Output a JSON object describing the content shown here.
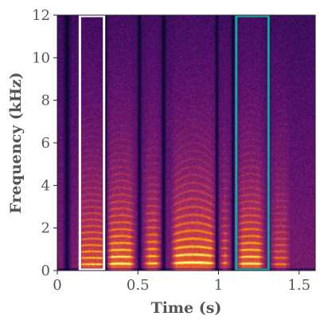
{
  "chart_data": {
    "type": "heatmap",
    "title": "",
    "xlabel": "Time (s)",
    "ylabel": "Frequency (kHz)",
    "xlim": [
      0,
      1.6
    ],
    "ylim": [
      0,
      12
    ],
    "x_ticks": [
      {
        "value": 0,
        "label": "0"
      },
      {
        "value": 0.5,
        "label": "0.5"
      },
      {
        "value": 1,
        "label": "1"
      },
      {
        "value": 1.5,
        "label": "1.5"
      }
    ],
    "y_ticks": [
      {
        "value": 0,
        "label": "0"
      },
      {
        "value": 2,
        "label": "2"
      },
      {
        "value": 4,
        "label": "4"
      },
      {
        "value": 6,
        "label": "6"
      },
      {
        "value": 8,
        "label": "8"
      },
      {
        "value": 10,
        "label": "10"
      },
      {
        "value": 12,
        "label": "12"
      }
    ],
    "colormap": "inferno",
    "grid": false,
    "highlight_boxes": [
      {
        "x_start": 0.14,
        "x_end": 0.29,
        "y_start": 0,
        "y_end": 12,
        "color": "#ffffff"
      },
      {
        "x_start": 1.11,
        "x_end": 1.31,
        "y_start": 0,
        "y_end": 12,
        "color": "#1aa39c"
      }
    ],
    "voiced_segments": [
      {
        "start": 0.14,
        "end": 0.29,
        "f0_khz": 0.24,
        "strength": 0.8
      },
      {
        "start": 0.32,
        "end": 0.47,
        "f0_khz": 0.26,
        "strength": 1.0
      },
      {
        "start": 0.55,
        "end": 0.63,
        "f0_khz": 0.27,
        "strength": 0.85
      },
      {
        "start": 0.72,
        "end": 0.97,
        "f0_khz": 0.3,
        "strength": 1.0
      },
      {
        "start": 1.02,
        "end": 1.06,
        "f0_khz": 0.28,
        "strength": 0.7
      },
      {
        "start": 1.13,
        "end": 1.27,
        "f0_khz": 0.26,
        "strength": 0.95
      },
      {
        "start": 1.34,
        "end": 1.43,
        "f0_khz": 0.24,
        "strength": 0.55
      }
    ],
    "pauses": [
      {
        "time": 0.06,
        "width": 0.03
      },
      {
        "time": 0.3,
        "width": 0.015
      },
      {
        "time": 0.51,
        "width": 0.018
      },
      {
        "time": 0.66,
        "width": 0.02
      },
      {
        "time": 0.99,
        "width": 0.015
      },
      {
        "time": 1.09,
        "width": 0.015
      },
      {
        "time": 1.31,
        "width": 0.015
      }
    ]
  }
}
